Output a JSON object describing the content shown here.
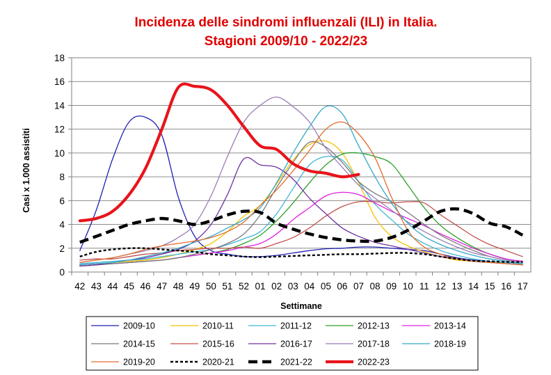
{
  "chart_data": {
    "type": "line",
    "title": "Incidenza delle sindromi influenzali (ILI) in Italia.",
    "subtitle": "Stagioni 2009/10 - 2022/23",
    "xlabel": "Settimane",
    "ylabel": "Casi x 1.000 assistiti",
    "ylim": [
      0,
      18
    ],
    "yticks": [
      "0",
      "2",
      "4",
      "6",
      "8",
      "10",
      "12",
      "14",
      "16",
      "18"
    ],
    "categories": [
      "42",
      "43",
      "44",
      "45",
      "46",
      "47",
      "48",
      "49",
      "50",
      "51",
      "52",
      "01",
      "02",
      "03",
      "04",
      "05",
      "06",
      "07",
      "08",
      "09",
      "10",
      "11",
      "12",
      "13",
      "14",
      "15",
      "16",
      "17"
    ],
    "grid": "horizontal",
    "legend_position": "bottom",
    "series": [
      {
        "name": "2009-10",
        "color": "#1f1fb4",
        "width": 1.3,
        "dash": "",
        "values": [
          1.8,
          5.2,
          9.5,
          12.6,
          13.0,
          11.5,
          6.3,
          3.0,
          1.8,
          1.5,
          1.3,
          1.3,
          1.4,
          1.6,
          1.8,
          1.95,
          2.0,
          2.1,
          2.1,
          2.0,
          1.9,
          1.8,
          1.5,
          1.2,
          1.0,
          0.9,
          0.8,
          0.7
        ]
      },
      {
        "name": "2010-11",
        "color": "#f5c200",
        "width": 1.3,
        "dash": "",
        "values": [
          0.6,
          0.7,
          0.8,
          0.9,
          1.0,
          1.2,
          1.5,
          1.9,
          2.4,
          3.4,
          4.7,
          5.6,
          7.4,
          9.4,
          10.7,
          11.0,
          10.0,
          7.5,
          4.6,
          3.0,
          2.2,
          1.7,
          1.3,
          1.0,
          0.9,
          0.8,
          0.7,
          0.6
        ]
      },
      {
        "name": "2011-12",
        "color": "#3fb6d4",
        "width": 1.3,
        "dash": "",
        "values": [
          0.7,
          0.8,
          0.9,
          1.0,
          1.1,
          1.3,
          1.5,
          1.7,
          1.9,
          2.3,
          2.8,
          3.4,
          4.9,
          7.0,
          9.0,
          9.7,
          9.4,
          7.6,
          5.7,
          4.4,
          3.2,
          2.4,
          1.8,
          1.4,
          1.1,
          0.9,
          0.8,
          0.7
        ]
      },
      {
        "name": "2012-13",
        "color": "#2aa02a",
        "width": 1.3,
        "dash": "",
        "values": [
          0.5,
          0.6,
          0.7,
          0.8,
          0.9,
          1.0,
          1.2,
          1.4,
          1.6,
          1.9,
          2.4,
          3.1,
          4.3,
          5.8,
          7.5,
          9.0,
          9.9,
          10.0,
          9.7,
          9.1,
          7.3,
          5.4,
          3.9,
          2.9,
          2.1,
          1.5,
          1.1,
          0.9
        ]
      },
      {
        "name": "2013-14",
        "color": "#e020e0",
        "width": 1.3,
        "dash": "",
        "values": [
          0.6,
          0.7,
          0.7,
          0.8,
          0.9,
          1.0,
          1.2,
          1.4,
          1.6,
          1.8,
          2.1,
          2.4,
          3.2,
          4.4,
          5.4,
          6.4,
          6.7,
          6.5,
          5.8,
          5.1,
          4.5,
          3.9,
          3.2,
          2.6,
          2.0,
          1.5,
          1.1,
          0.9
        ]
      },
      {
        "name": "2014-15",
        "color": "#7a7a7a",
        "width": 1.3,
        "dash": "",
        "values": [
          0.5,
          0.6,
          0.7,
          0.8,
          0.9,
          1.0,
          1.2,
          1.5,
          1.9,
          2.4,
          3.2,
          4.8,
          7.1,
          9.2,
          10.9,
          10.5,
          9.2,
          7.6,
          6.6,
          5.9,
          5.0,
          4.0,
          3.1,
          2.4,
          1.8,
          1.3,
          1.0,
          0.8
        ]
      },
      {
        "name": "2015-16",
        "color": "#c0504d",
        "width": 1.3,
        "dash": "",
        "values": [
          1.0,
          1.1,
          1.1,
          1.3,
          1.5,
          1.6,
          1.8,
          1.9,
          2.0,
          2.0,
          2.1,
          2.0,
          2.4,
          2.9,
          3.7,
          4.7,
          5.5,
          5.9,
          5.9,
          5.8,
          5.9,
          5.8,
          4.8,
          3.9,
          3.0,
          2.3,
          1.8,
          1.3
        ]
      },
      {
        "name": "2016-17",
        "color": "#7030a0",
        "width": 1.3,
        "dash": "",
        "values": [
          0.5,
          0.6,
          0.8,
          1.0,
          1.2,
          1.5,
          1.9,
          2.6,
          4.0,
          6.5,
          9.5,
          9.0,
          8.8,
          7.8,
          6.2,
          4.9,
          3.7,
          3.0,
          2.5,
          2.2,
          1.9,
          1.6,
          1.3,
          1.1,
          0.9,
          0.8,
          0.7,
          0.6
        ]
      },
      {
        "name": "2017-18",
        "color": "#9b7bb5",
        "width": 1.3,
        "dash": "",
        "values": [
          0.8,
          1.0,
          1.2,
          1.5,
          1.8,
          2.2,
          2.9,
          4.0,
          6.4,
          9.7,
          12.6,
          14.0,
          14.7,
          13.9,
          12.6,
          10.4,
          8.8,
          7.3,
          6.2,
          5.2,
          4.2,
          3.4,
          2.7,
          2.1,
          1.6,
          1.3,
          1.0,
          0.8
        ]
      },
      {
        "name": "2018-19",
        "color": "#30a8c8",
        "width": 1.3,
        "dash": "",
        "values": [
          0.6,
          0.7,
          0.8,
          1.0,
          1.3,
          1.6,
          2.0,
          2.5,
          3.0,
          3.7,
          4.4,
          5.4,
          7.5,
          10.0,
          12.2,
          13.9,
          13.3,
          10.6,
          8.0,
          5.8,
          4.1,
          3.0,
          2.3,
          1.8,
          1.4,
          1.1,
          0.9,
          0.7
        ]
      },
      {
        "name": "2019-20",
        "color": "#e36c2c",
        "width": 1.3,
        "dash": "",
        "values": [
          0.8,
          1.0,
          1.2,
          1.5,
          1.9,
          2.2,
          2.4,
          2.6,
          2.9,
          3.4,
          4.2,
          5.6,
          6.9,
          8.5,
          10.2,
          12.0,
          12.6,
          11.6,
          9.6,
          6.3,
          3.5,
          2.1,
          1.5,
          1.1,
          0.9,
          0.8,
          0.7,
          0.6
        ]
      },
      {
        "name": "2020-21",
        "color": "#000000",
        "width": 2.4,
        "dash": "4,3",
        "values": [
          1.3,
          1.7,
          1.9,
          2.0,
          2.0,
          1.9,
          1.8,
          1.7,
          1.5,
          1.4,
          1.3,
          1.25,
          1.3,
          1.35,
          1.4,
          1.45,
          1.5,
          1.5,
          1.55,
          1.6,
          1.6,
          1.5,
          1.3,
          1.1,
          0.95,
          0.9,
          0.85,
          0.85
        ]
      },
      {
        "name": "2021-22",
        "color": "#000000",
        "width": 4.4,
        "dash": "13,7",
        "values": [
          2.5,
          3.0,
          3.5,
          4.0,
          4.3,
          4.5,
          4.3,
          4.0,
          4.3,
          4.8,
          5.1,
          5.0,
          4.1,
          3.6,
          3.2,
          2.9,
          2.7,
          2.6,
          2.6,
          2.9,
          3.5,
          4.3,
          5.1,
          5.3,
          4.9,
          4.1,
          3.8,
          3.1
        ]
      },
      {
        "name": "2022-23",
        "color": "#e8141b",
        "width": 4.2,
        "dash": "",
        "values": [
          4.3,
          4.5,
          5.1,
          6.5,
          8.7,
          12.0,
          15.5,
          15.6,
          15.3,
          14.0,
          12.2,
          10.6,
          10.3,
          9.1,
          8.5,
          8.3,
          8.0,
          8.2,
          null,
          null,
          null,
          null,
          null,
          null,
          null,
          null,
          null,
          null
        ]
      }
    ]
  }
}
